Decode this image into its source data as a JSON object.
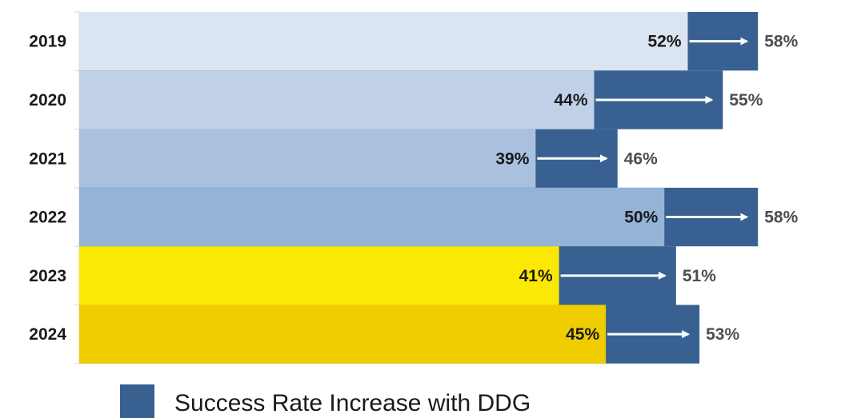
{
  "chart_data": {
    "type": "bar",
    "orientation": "horizontal",
    "categories": [
      "2019",
      "2020",
      "2021",
      "2022",
      "2023",
      "2024"
    ],
    "series": [
      {
        "values": [
          52,
          44,
          39,
          50,
          41,
          45
        ],
        "labels": [
          "52%",
          "44%",
          "39%",
          "50%",
          "41%",
          "45%"
        ]
      },
      {
        "name": "Success Rate Increase with DDG",
        "values": [
          58,
          55,
          46,
          58,
          51,
          53
        ],
        "labels": [
          "58%",
          "55%",
          "46%",
          "58%",
          "51%",
          "53%"
        ]
      }
    ],
    "base_colors": [
      "#dbe4f1",
      "#c1d2e8",
      "#a9c0df",
      "#94b3d7",
      "#fbe804",
      "#f0cd01"
    ],
    "increase_color": "#386192",
    "arrow_color": "#ffffff",
    "xlim": [
      0,
      64
    ],
    "legend": {
      "position": "bottom-left",
      "label": "Success Rate Increase with DDG"
    },
    "grid": false
  }
}
